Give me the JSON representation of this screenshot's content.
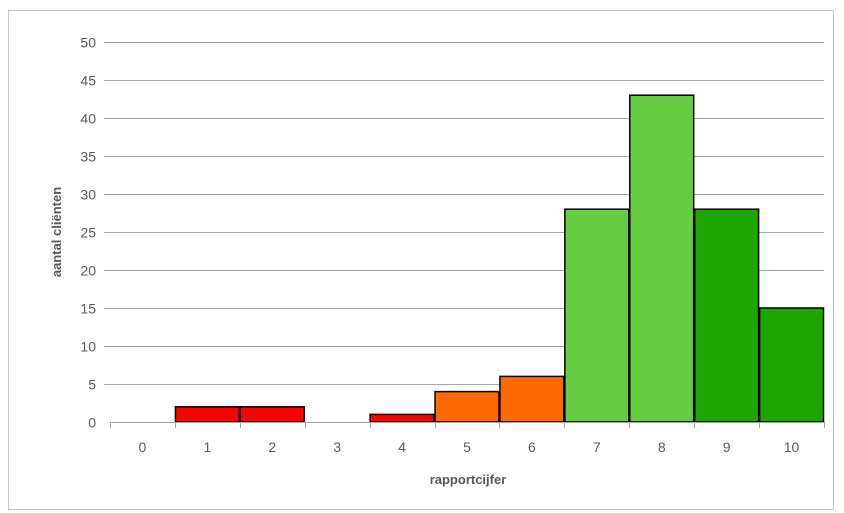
{
  "chart_data": {
    "type": "bar",
    "title": "",
    "xlabel": "rapportcijfer",
    "ylabel": "aantal cliënten",
    "categories": [
      "0",
      "1",
      "2",
      "3",
      "4",
      "5",
      "6",
      "7",
      "8",
      "9",
      "10"
    ],
    "values": [
      0,
      2,
      2,
      0,
      1,
      4,
      6,
      28,
      43,
      28,
      15
    ],
    "bar_colors": [
      "#ff0000",
      "#ff0000",
      "#ff0000",
      "#ff0000",
      "#ff0000",
      "#ff6a00",
      "#ff6a00",
      "#66cc44",
      "#66cc44",
      "#1ea500",
      "#1ea500"
    ],
    "ylim": [
      0,
      50
    ],
    "yticks": [
      "0",
      "5",
      "10",
      "15",
      "20",
      "25",
      "30",
      "35",
      "40",
      "45",
      "50"
    ],
    "grid": true,
    "legend": "none"
  }
}
